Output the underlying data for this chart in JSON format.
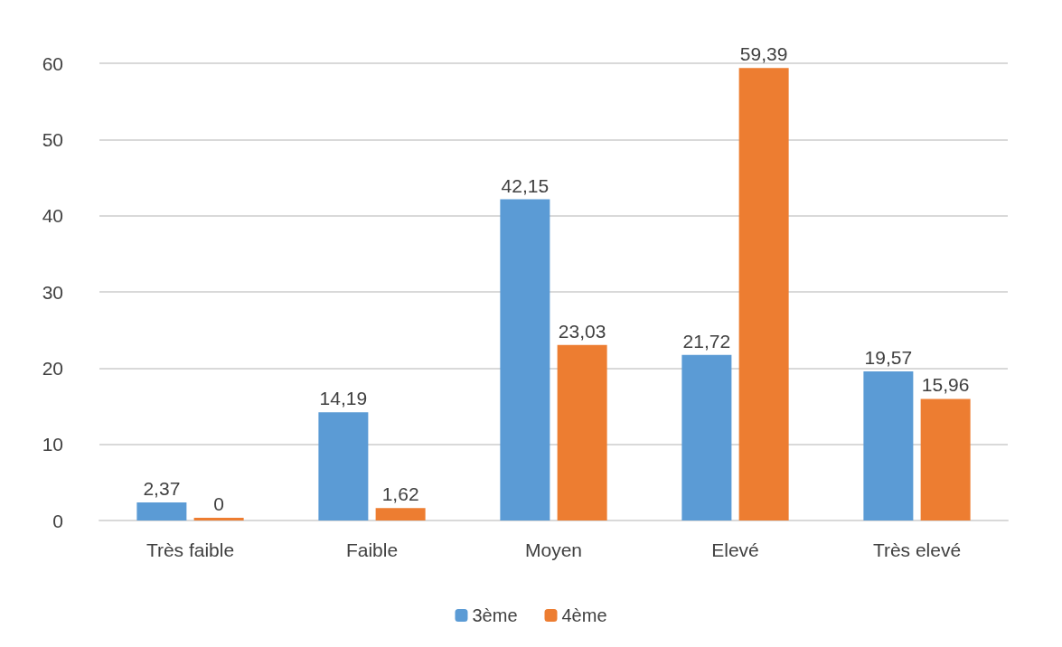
{
  "chart_data": {
    "type": "bar",
    "categories": [
      "Très faible",
      "Faible",
      "Moyen",
      "Elevé",
      "Très elevé"
    ],
    "series": [
      {
        "name": "3ème",
        "color": "#5b9bd5",
        "values": [
          2.37,
          14.19,
          42.15,
          21.72,
          19.57
        ],
        "value_labels": [
          "2,37",
          "14,19",
          "42,15",
          "21,72",
          "19,57"
        ]
      },
      {
        "name": "4ème",
        "color": "#ed7d31",
        "values": [
          0,
          1.62,
          23.03,
          59.39,
          15.96
        ],
        "value_labels": [
          "0",
          "1,62",
          "23,03",
          "59,39",
          "15,96"
        ]
      }
    ],
    "ylim": [
      0,
      60
    ],
    "yticks": [
      0,
      10,
      20,
      30,
      40,
      50,
      60
    ],
    "grid": "y",
    "legend": "bottom"
  }
}
